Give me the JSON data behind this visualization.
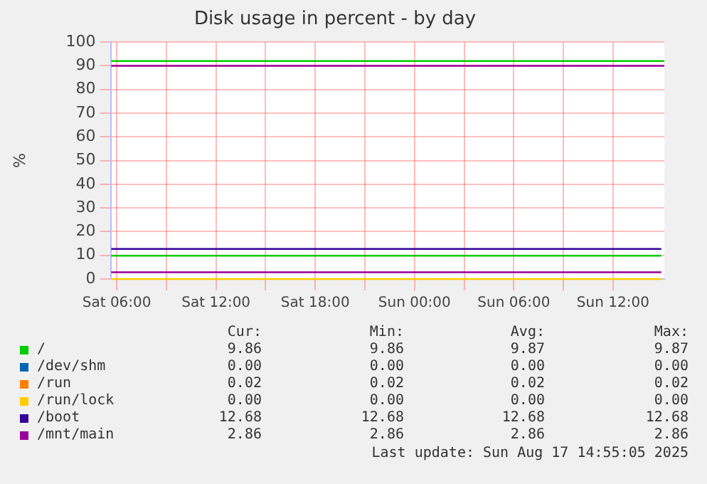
{
  "chart_data": {
    "type": "line",
    "title": "Disk usage in percent - by day",
    "ylabel": "%",
    "x": [
      "2025-08-16T05:40",
      "2025-08-17T14:55"
    ],
    "xlim": [
      "2025-08-16T05:40",
      "2025-08-17T15:06"
    ],
    "xticks": [
      {
        "value": "2025-08-16T06:00",
        "label": "Sat 06:00"
      },
      {
        "value": "2025-08-16T09:00",
        "label": null
      },
      {
        "value": "2025-08-16T12:00",
        "label": "Sat 12:00"
      },
      {
        "value": "2025-08-16T15:00",
        "label": null
      },
      {
        "value": "2025-08-16T18:00",
        "label": "Sat 18:00"
      },
      {
        "value": "2025-08-16T21:00",
        "label": null
      },
      {
        "value": "2025-08-17T00:00",
        "label": "Sun 00:00"
      },
      {
        "value": "2025-08-17T03:00",
        "label": null
      },
      {
        "value": "2025-08-17T06:00",
        "label": "Sun 06:00"
      },
      {
        "value": "2025-08-17T09:00",
        "label": null
      },
      {
        "value": "2025-08-17T12:00",
        "label": "Sun 12:00"
      }
    ],
    "ylim": [
      0,
      100
    ],
    "yticks": [
      0,
      10,
      20,
      30,
      40,
      50,
      60,
      70,
      80,
      90,
      100
    ],
    "grid": true,
    "legend": "bottom",
    "marker": "none",
    "line_style": "solid",
    "series": [
      {
        "name": "/",
        "color": "#00cc00",
        "values": [
          9.86,
          9.86
        ]
      },
      {
        "name": "/dev/shm",
        "color": "#0066b3",
        "values": [
          null,
          null
        ]
      },
      {
        "name": "/run",
        "color": "#ff8000",
        "values": [
          null,
          null
        ]
      },
      {
        "name": "/run/lock",
        "color": "#ffcc00",
        "values": [
          0,
          0
        ]
      },
      {
        "name": "/boot",
        "color": "#330099",
        "values": [
          12.68,
          12.68
        ]
      },
      {
        "name": "/mnt/main",
        "color": "#990099",
        "values": [
          2.86,
          2.86
        ]
      }
    ],
    "ref_lines": [
      {
        "axis": "y",
        "value": 92,
        "color": "#00cc00"
      },
      {
        "axis": "y",
        "value": 90,
        "color": "#990099"
      }
    ],
    "annotations": [
      "Cur:",
      "Min:",
      "Avg:",
      "Max:",
      "9.86",
      "9.86",
      "9.87",
      "9.87",
      "0.00",
      "0.00",
      "0.00",
      "0.00",
      "0.02",
      "0.02",
      "0.02",
      "0.02",
      "0.00",
      "0.00",
      "0.00",
      "0.00",
      "12.68",
      "12.68",
      "12.68",
      "12.68",
      "2.86",
      "2.86",
      "2.86",
      "2.86",
      "Last update: Sun Aug 17 14:55:05 2025"
    ]
  }
}
